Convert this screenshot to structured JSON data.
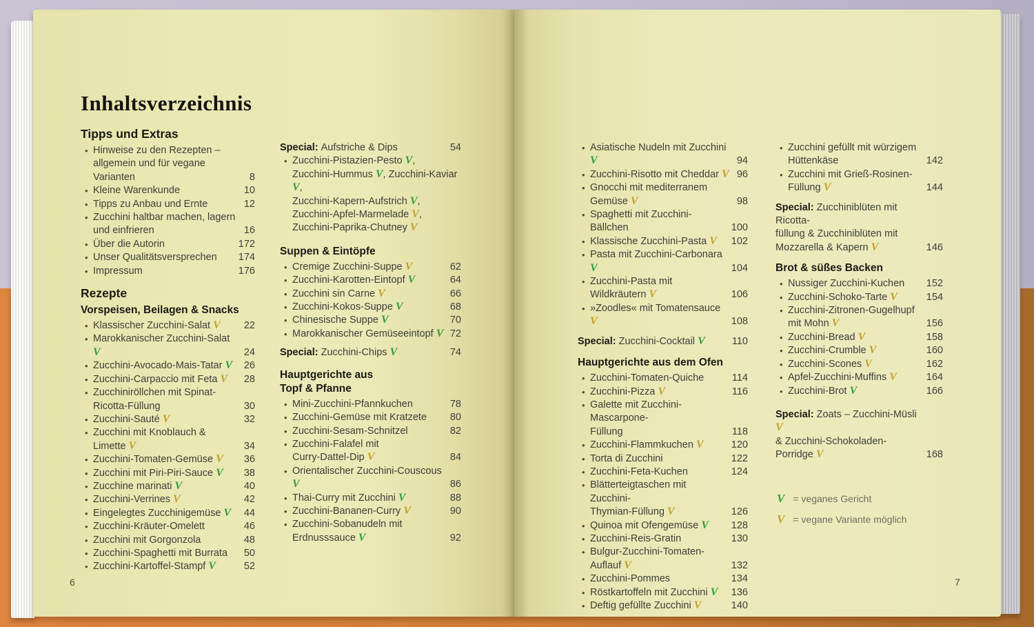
{
  "book": {
    "title": "Inhaltsverzeichnis",
    "left_page_number": "6",
    "right_page_number": "7"
  },
  "marks": {
    "glyph": "V"
  },
  "colors": {
    "vegan_green": "#2f9e3c",
    "variant_yellow": "#c2a02b",
    "page_cream": "#eae8b3",
    "bg_lavender": "#c9c3d4",
    "bg_orange": "#de8540",
    "text_body": "#3e3e3a",
    "legend_gray": "#6f6e60"
  },
  "legend": [
    {
      "mark": "vegan",
      "text": "= veganes Gericht"
    },
    {
      "mark": "variant",
      "text": "= vegane Variante möglich"
    }
  ],
  "columns": {
    "l1": [
      {
        "k": "h1",
        "l": [
          "Tipps und Extras"
        ]
      },
      {
        "k": "e",
        "l": [
          [
            "Hinweise zu den Rezepten –"
          ],
          [
            "allgemein und für vegane Varianten"
          ]
        ],
        "p": "8"
      },
      {
        "k": "e",
        "l": [
          [
            "Kleine Warenkunde"
          ]
        ],
        "p": "10"
      },
      {
        "k": "e",
        "l": [
          [
            "Tipps zu Anbau und Ernte"
          ]
        ],
        "p": "12"
      },
      {
        "k": "e",
        "l": [
          [
            "Zucchini haltbar machen, lagern"
          ],
          [
            "und einfrieren"
          ]
        ],
        "p": "16"
      },
      {
        "k": "e",
        "l": [
          [
            "Über die Autorin"
          ]
        ],
        "p": "172"
      },
      {
        "k": "e",
        "l": [
          [
            "Unser Qualitätsversprechen"
          ]
        ],
        "p": "174"
      },
      {
        "k": "e",
        "l": [
          [
            "Impressum"
          ]
        ],
        "p": "176"
      },
      {
        "k": "g",
        "h": 11
      },
      {
        "k": "h1",
        "l": [
          "Rezepte"
        ]
      },
      {
        "k": "h2",
        "l": [
          "Vorspeisen, Beilagen & Snacks"
        ]
      },
      {
        "k": "e",
        "l": [
          [
            "Klassischer Zucchini-Salat ",
            {
              "v": "variant"
            }
          ]
        ],
        "p": "22"
      },
      {
        "k": "e",
        "l": [
          [
            "Marokkanischer Zucchini-Salat ",
            {
              "v": "vegan"
            }
          ]
        ],
        "p": "24"
      },
      {
        "k": "e",
        "l": [
          [
            "Zucchini-Avocado-Mais-Tatar ",
            {
              "v": "vegan"
            }
          ]
        ],
        "p": "26"
      },
      {
        "k": "e",
        "l": [
          [
            "Zucchini-Carpaccio mit Feta ",
            {
              "v": "variant"
            }
          ]
        ],
        "p": "28"
      },
      {
        "k": "e",
        "l": [
          [
            "Zucchiniröllchen mit Spinat-"
          ],
          [
            "Ricotta-Füllung"
          ]
        ],
        "p": "30"
      },
      {
        "k": "e",
        "l": [
          [
            "Zucchini-Sauté ",
            {
              "v": "variant"
            }
          ]
        ],
        "p": "32"
      },
      {
        "k": "e",
        "l": [
          [
            "Zucchini mit Knoblauch & Limette ",
            {
              "v": "variant"
            }
          ]
        ],
        "p": "34"
      },
      {
        "k": "e",
        "l": [
          [
            "Zucchini-Tomaten-Gemüse ",
            {
              "v": "variant"
            }
          ]
        ],
        "p": "36"
      },
      {
        "k": "e",
        "l": [
          [
            "Zucchini mit Piri-Piri-Sauce ",
            {
              "v": "vegan"
            }
          ]
        ],
        "p": "38"
      },
      {
        "k": "e",
        "l": [
          [
            "Zucchine marinati ",
            {
              "v": "vegan"
            }
          ]
        ],
        "p": "40"
      },
      {
        "k": "e",
        "l": [
          [
            "Zucchini-Verrines ",
            {
              "v": "variant"
            }
          ]
        ],
        "p": "42"
      },
      {
        "k": "e",
        "l": [
          [
            "Eingelegtes Zucchinigemüse ",
            {
              "v": "vegan"
            }
          ]
        ],
        "p": "44"
      },
      {
        "k": "e",
        "l": [
          [
            "Zucchini-Kräuter-Omelett"
          ]
        ],
        "p": "46"
      },
      {
        "k": "e",
        "l": [
          [
            "Zucchini mit Gorgonzola"
          ]
        ],
        "p": "48"
      },
      {
        "k": "e",
        "l": [
          [
            "Zucchini-Spaghetti mit Burrata"
          ]
        ],
        "p": "50"
      },
      {
        "k": "e",
        "l": [
          [
            "Zucchini-Kartoffel-Stampf ",
            {
              "v": "vegan"
            }
          ]
        ],
        "p": "52"
      }
    ],
    "l2": [
      {
        "k": "sp",
        "label": "Special:",
        "l": [
          [
            "Aufstriche & Dips"
          ]
        ],
        "p": "54"
      },
      {
        "k": "e",
        "l": [
          [
            "Zucchini-Pistazien-Pesto ",
            {
              "v": "vegan"
            },
            ","
          ],
          [
            "Zucchini-Hummus ",
            {
              "v": "vegan"
            },
            ", Zucchini-Kaviar ",
            {
              "v": "vegan"
            },
            ","
          ],
          [
            "Zucchini-Kapern-Aufstrich ",
            {
              "v": "vegan"
            },
            ","
          ],
          [
            "Zucchini-Apfel-Marmelade ",
            {
              "v": "variant"
            },
            ","
          ],
          [
            "Zucchini-Paprika-Chutney ",
            {
              "v": "variant"
            }
          ]
        ],
        "p": ""
      },
      {
        "k": "g",
        "h": 14
      },
      {
        "k": "h2",
        "l": [
          "Suppen & Eintöpfe"
        ]
      },
      {
        "k": "e",
        "l": [
          [
            "Cremige Zucchini-Suppe ",
            {
              "v": "variant"
            }
          ]
        ],
        "p": "62"
      },
      {
        "k": "e",
        "l": [
          [
            "Zucchini-Karotten-Eintopf ",
            {
              "v": "vegan"
            }
          ]
        ],
        "p": "64"
      },
      {
        "k": "e",
        "l": [
          [
            "Zucchini sin Carne ",
            {
              "v": "variant"
            }
          ]
        ],
        "p": "66"
      },
      {
        "k": "e",
        "l": [
          [
            "Zucchini-Kokos-Suppe ",
            {
              "v": "vegan"
            }
          ]
        ],
        "p": "68"
      },
      {
        "k": "e",
        "l": [
          [
            "Chinesische Suppe ",
            {
              "v": "vegan"
            }
          ]
        ],
        "p": "70"
      },
      {
        "k": "e",
        "l": [
          [
            "Marokkanischer Gemüseeintopf ",
            {
              "v": "vegan"
            }
          ]
        ],
        "p": "72"
      },
      {
        "k": "g",
        "h": 8
      },
      {
        "k": "sp",
        "label": "Special:",
        "l": [
          [
            "Zucchini-Chips ",
            {
              "v": "vegan"
            }
          ]
        ],
        "p": "74"
      },
      {
        "k": "g",
        "h": 12
      },
      {
        "k": "h2",
        "l": [
          "Hauptgerichte aus",
          "Topf & Pfanne"
        ]
      },
      {
        "k": "e",
        "l": [
          [
            "Mini-Zucchini-Pfannkuchen"
          ]
        ],
        "p": "78"
      },
      {
        "k": "e",
        "l": [
          [
            "Zucchini-Gemüse mit Kratzete"
          ]
        ],
        "p": "80"
      },
      {
        "k": "e",
        "l": [
          [
            "Zucchini-Sesam-Schnitzel"
          ]
        ],
        "p": "82"
      },
      {
        "k": "e",
        "l": [
          [
            "Zucchini-Falafel mit"
          ],
          [
            "Curry-Dattel-Dip ",
            {
              "v": "variant"
            }
          ]
        ],
        "p": "84"
      },
      {
        "k": "e",
        "l": [
          [
            "Orientalischer Zucchini-Couscous ",
            {
              "v": "vegan"
            }
          ]
        ],
        "p": "86"
      },
      {
        "k": "e",
        "l": [
          [
            "Thai-Curry mit Zucchini ",
            {
              "v": "vegan"
            }
          ]
        ],
        "p": "88"
      },
      {
        "k": "e",
        "l": [
          [
            "Zucchini-Bananen-Curry ",
            {
              "v": "variant"
            }
          ]
        ],
        "p": "90"
      },
      {
        "k": "e",
        "l": [
          [
            "Zucchini-Sobanudeln mit"
          ],
          [
            "Erdnusssauce ",
            {
              "v": "vegan"
            }
          ]
        ],
        "p": "92"
      }
    ],
    "r1": [
      {
        "k": "e",
        "l": [
          [
            "Asiatische Nudeln mit Zucchini ",
            {
              "v": "vegan"
            }
          ]
        ],
        "p": "94"
      },
      {
        "k": "e",
        "l": [
          [
            "Zucchini-Risotto mit Cheddar ",
            {
              "v": "variant"
            }
          ]
        ],
        "p": "96"
      },
      {
        "k": "e",
        "l": [
          [
            "Gnocchi mit mediterranem"
          ],
          [
            "Gemüse ",
            {
              "v": "variant"
            }
          ]
        ],
        "p": "98"
      },
      {
        "k": "e",
        "l": [
          [
            "Spaghetti mit Zucchini-Bällchen"
          ]
        ],
        "p": "100"
      },
      {
        "k": "e",
        "l": [
          [
            "Klassische Zucchini-Pasta ",
            {
              "v": "variant"
            }
          ]
        ],
        "p": "102"
      },
      {
        "k": "e",
        "l": [
          [
            "Pasta mit Zucchini-Carbonara ",
            {
              "v": "vegan"
            }
          ]
        ],
        "p": "104"
      },
      {
        "k": "e",
        "l": [
          [
            "Zucchini-Pasta mit Wildkräutern ",
            {
              "v": "variant"
            }
          ]
        ],
        "p": "106"
      },
      {
        "k": "e",
        "l": [
          [
            "»Zoodles« mit Tomatensauce ",
            {
              "v": "variant"
            }
          ]
        ],
        "p": "108"
      },
      {
        "k": "g",
        "h": 9
      },
      {
        "k": "sp",
        "label": "Special:",
        "l": [
          [
            "Zucchini-Cocktail ",
            {
              "v": "vegan"
            }
          ]
        ],
        "p": "110"
      },
      {
        "k": "g",
        "h": 11
      },
      {
        "k": "h2",
        "l": [
          "Hauptgerichte aus dem Ofen"
        ]
      },
      {
        "k": "e",
        "l": [
          [
            "Zucchini-Tomaten-Quiche"
          ]
        ],
        "p": "114"
      },
      {
        "k": "e",
        "l": [
          [
            "Zucchini-Pizza ",
            {
              "v": "variant"
            }
          ]
        ],
        "p": "116"
      },
      {
        "k": "e",
        "l": [
          [
            "Galette mit Zucchini-Mascarpone-"
          ],
          [
            "Füllung"
          ]
        ],
        "p": "118"
      },
      {
        "k": "e",
        "l": [
          [
            "Zucchini-Flammkuchen ",
            {
              "v": "variant"
            }
          ]
        ],
        "p": "120"
      },
      {
        "k": "e",
        "l": [
          [
            "Torta di Zucchini"
          ]
        ],
        "p": "122"
      },
      {
        "k": "e",
        "l": [
          [
            "Zucchini-Feta-Kuchen"
          ]
        ],
        "p": "124"
      },
      {
        "k": "e",
        "l": [
          [
            "Blätterteigtaschen mit Zucchini-"
          ],
          [
            "Thymian-Füllung ",
            {
              "v": "variant"
            }
          ]
        ],
        "p": "126"
      },
      {
        "k": "e",
        "l": [
          [
            "Quinoa mit Ofengemüse ",
            {
              "v": "vegan"
            }
          ]
        ],
        "p": "128"
      },
      {
        "k": "e",
        "l": [
          [
            "Zucchini-Reis-Gratin"
          ]
        ],
        "p": "130"
      },
      {
        "k": "e",
        "l": [
          [
            "Bulgur-Zucchini-Tomaten-"
          ],
          [
            "Auflauf ",
            {
              "v": "variant"
            }
          ]
        ],
        "p": "132"
      },
      {
        "k": "e",
        "l": [
          [
            "Zucchini-Pommes"
          ]
        ],
        "p": "134"
      },
      {
        "k": "e",
        "l": [
          [
            "Röstkartoffeln mit Zucchini ",
            {
              "v": "vegan"
            }
          ]
        ],
        "p": "136"
      },
      {
        "k": "e",
        "l": [
          [
            "Deftig gefüllte Zucchini ",
            {
              "v": "variant"
            }
          ]
        ],
        "p": "140"
      }
    ],
    "r2": [
      {
        "k": "e",
        "l": [
          [
            "Zucchini gefüllt mit würzigem"
          ],
          [
            "Hüttenkäse"
          ]
        ],
        "p": "142"
      },
      {
        "k": "e",
        "l": [
          [
            "Zucchini mit Grieß-Rosinen-"
          ],
          [
            "Füllung ",
            {
              "v": "variant"
            }
          ]
        ],
        "p": "144"
      },
      {
        "k": "g",
        "h": 9
      },
      {
        "k": "sp",
        "label": "Special:",
        "l": [
          [
            "Zucchiniblüten mit Ricotta-"
          ],
          [
            "füllung & Zucchiniblüten mit"
          ],
          [
            "Mozzarella & Kapern ",
            {
              "v": "variant"
            }
          ]
        ],
        "p": "146"
      },
      {
        "k": "g",
        "h": 10
      },
      {
        "k": "h2",
        "l": [
          "Brot & süßes Backen"
        ]
      },
      {
        "k": "e",
        "l": [
          [
            "Nussiger Zucchini-Kuchen"
          ]
        ],
        "p": "152"
      },
      {
        "k": "e",
        "l": [
          [
            "Zucchini-Schoko-Tarte ",
            {
              "v": "variant"
            }
          ]
        ],
        "p": "154"
      },
      {
        "k": "e",
        "l": [
          [
            "Zucchini-Zitronen-Gugelhupf"
          ],
          [
            "mit Mohn ",
            {
              "v": "variant"
            }
          ]
        ],
        "p": "156"
      },
      {
        "k": "e",
        "l": [
          [
            "Zucchini-Bread ",
            {
              "v": "variant"
            }
          ]
        ],
        "p": "158"
      },
      {
        "k": "e",
        "l": [
          [
            "Zucchini-Crumble ",
            {
              "v": "variant"
            }
          ]
        ],
        "p": "160"
      },
      {
        "k": "e",
        "l": [
          [
            "Zucchini-Scones ",
            {
              "v": "variant"
            }
          ]
        ],
        "p": "162"
      },
      {
        "k": "e",
        "l": [
          [
            "Apfel-Zucchini-Muffins ",
            {
              "v": "variant"
            }
          ]
        ],
        "p": "164"
      },
      {
        "k": "e",
        "l": [
          [
            "Zucchini-Brot ",
            {
              "v": "vegan"
            }
          ]
        ],
        "p": "166"
      },
      {
        "k": "g",
        "h": 15
      },
      {
        "k": "sp",
        "label": "Special:",
        "l": [
          [
            "Zoats – Zucchini-Müsli ",
            {
              "v": "variant"
            }
          ],
          [
            "& Zucchini-Schokoladen-Porridge ",
            {
              "v": "variant"
            }
          ]
        ],
        "p": "168"
      }
    ]
  }
}
